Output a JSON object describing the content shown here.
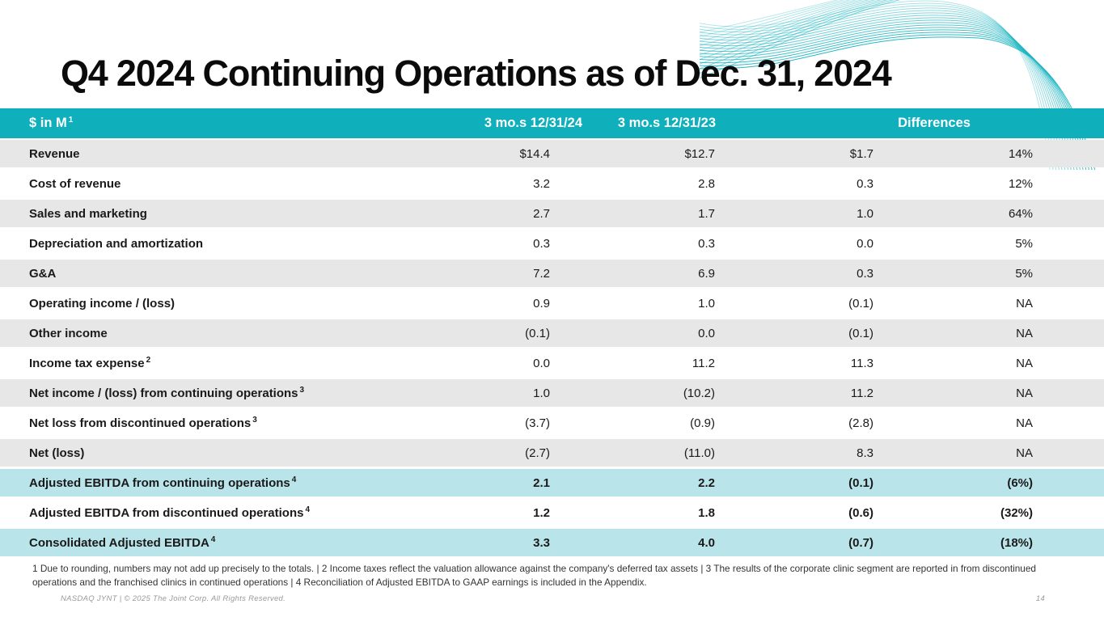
{
  "slide": {
    "title": "Q4 2024 Continuing Operations as of Dec. 31, 2024",
    "footnotes": "1 Due to rounding, numbers may not add up precisely to the totals. | 2 Income taxes reflect the valuation allowance against the company's deferred tax assets  | 3 The results of the corporate clinic segment are reported in from discontinued operations and the franchised clinics in continued operations | 4 Reconciliation of Adjusted EBITDA to GAAP earnings is included in the Appendix.",
    "footer": "NASDAQ JYNT   |  © 2025 The Joint Corp. All Rights Reserved.",
    "page_number": "14"
  },
  "colors": {
    "header_teal": "#0FAFBB",
    "highlight_teal": "#B9E4EA",
    "row_gray": "#E7E7E7",
    "wave_teal": "#1CB5C1"
  },
  "table": {
    "headers": {
      "label": "$ in M",
      "label_sup": "1",
      "col_2024": "3 mo.s 12/31/24",
      "col_2023": "3 mo.s 12/31/23",
      "col_diff": "Differences"
    },
    "rows": [
      {
        "label": "Revenue",
        "sup": "",
        "v1": "$14.4",
        "v2": "$12.7",
        "v3": "$1.7",
        "v4": "14%",
        "style": "gray",
        "bold": false
      },
      {
        "label": "Cost of revenue",
        "sup": "",
        "v1": "3.2",
        "v2": "2.8",
        "v3": "0.3",
        "v4": "12%",
        "style": "white",
        "bold": false
      },
      {
        "label": "Sales and marketing",
        "sup": "",
        "v1": "2.7",
        "v2": "1.7",
        "v3": "1.0",
        "v4": "64%",
        "style": "gray",
        "bold": false
      },
      {
        "label": "Depreciation and amortization",
        "sup": "",
        "v1": "0.3",
        "v2": "0.3",
        "v3": "0.0",
        "v4": "5%",
        "style": "white",
        "bold": false
      },
      {
        "label": "G&A",
        "sup": "",
        "v1": "7.2",
        "v2": "6.9",
        "v3": "0.3",
        "v4": "5%",
        "style": "gray",
        "bold": false
      },
      {
        "label": "Operating  income / (loss)",
        "sup": "",
        "v1": "0.9",
        "v2": "1.0",
        "v3": "(0.1)",
        "v4": "NA",
        "style": "white",
        "bold": false
      },
      {
        "label": "Other income",
        "sup": "",
        "v1": "(0.1)",
        "v2": "0.0",
        "v3": "(0.1)",
        "v4": "NA",
        "style": "gray",
        "bold": false
      },
      {
        "label": "Income tax expense",
        "sup": "2",
        "v1": "0.0",
        "v2": "11.2",
        "v3": "11.3",
        "v4": "NA",
        "style": "white",
        "bold": false
      },
      {
        "label": "Net income / (loss) from continuing operations",
        "sup": "3",
        "v1": "1.0",
        "v2": "(10.2)",
        "v3": "11.2",
        "v4": "NA",
        "style": "gray",
        "bold": false
      },
      {
        "label": "Net loss from discontinued operations",
        "sup": "3",
        "v1": "(3.7)",
        "v2": "(0.9)",
        "v3": "(2.8)",
        "v4": "NA",
        "style": "white",
        "bold": false
      },
      {
        "label": "Net (loss)",
        "sup": "",
        "v1": "(2.7)",
        "v2": "(11.0)",
        "v3": "8.3",
        "v4": "NA",
        "style": "gray",
        "bold": false
      },
      {
        "label": "Adjusted EBITDA from continuing operations",
        "sup": "4",
        "v1": "2.1",
        "v2": "2.2",
        "v3": "(0.1)",
        "v4": "(6%)",
        "style": "teal",
        "bold": true
      },
      {
        "label": "Adjusted EBITDA from discontinued operations",
        "sup": "4",
        "v1": "1.2",
        "v2": "1.8",
        "v3": "(0.6)",
        "v4": "(32%)",
        "style": "white",
        "bold": true
      },
      {
        "label": "Consolidated Adjusted EBITDA",
        "sup": "4",
        "v1": "3.3",
        "v2": "4.0",
        "v3": "(0.7)",
        "v4": "(18%)",
        "style": "teal",
        "bold": true
      }
    ]
  }
}
